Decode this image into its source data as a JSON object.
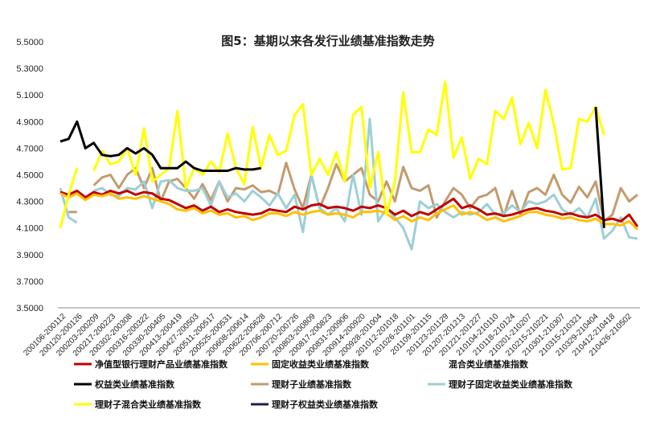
{
  "chart_data": {
    "type": "line",
    "title": "图5：基期以来各发行业绩基准指数走势",
    "xlabel": "",
    "ylabel": "",
    "ylim": [
      3.5,
      5.5
    ],
    "yticks": [
      "5.5000",
      "5.3000",
      "5.1000",
      "4.9000",
      "4.7000",
      "4.5000",
      "4.3000",
      "4.1000",
      "3.9000",
      "3.7000",
      "3.5000"
    ],
    "grid": false,
    "legend_position": "bottom",
    "x_tick_labels": [
      "200106-200112",
      "200120-200126",
      "200203-200209",
      "200217-200223",
      "200302-200308",
      "200316-200322",
      "200330-200405",
      "200413-200419",
      "200427-200503",
      "200511-200517",
      "200525-200531",
      "200608-200614",
      "200622-200628",
      "200706-200712",
      "200720-200726",
      "200803-200809",
      "200817-200823",
      "200831-200906",
      "200914-200920",
      "200928-201004",
      "201012-201018",
      "201026-201101",
      "201109-201115",
      "201123-201129",
      "201207-201213",
      "201221-201227",
      "210104-210110",
      "210118-210124",
      "210201-210207",
      "210215-210221",
      "210301-210307",
      "210315-210321",
      "210329-210404",
      "210412-210418",
      "210426-210502"
    ],
    "n_points": 70,
    "series": [
      {
        "name": "净值型银行理财产品业绩基准指数",
        "color": "#C00000",
        "width": 3,
        "values": [
          4.37,
          4.35,
          4.38,
          4.33,
          4.37,
          4.35,
          4.38,
          4.36,
          4.38,
          4.35,
          4.37,
          4.36,
          4.32,
          4.31,
          4.28,
          4.25,
          4.27,
          4.23,
          4.26,
          4.22,
          4.24,
          4.22,
          4.21,
          4.2,
          4.21,
          4.24,
          4.23,
          4.22,
          4.26,
          4.24,
          4.27,
          4.28,
          4.25,
          4.26,
          4.25,
          4.23,
          4.26,
          4.25,
          4.27,
          4.25,
          4.2,
          4.23,
          4.19,
          4.22,
          4.2,
          4.24,
          4.28,
          4.32,
          4.25,
          4.27,
          4.24,
          4.2,
          4.21,
          4.19,
          4.2,
          4.22,
          4.24,
          4.25,
          4.23,
          4.22,
          4.2,
          4.21,
          4.19,
          4.18,
          4.2,
          4.16,
          4.17,
          4.15,
          4.2,
          4.11
        ]
      },
      {
        "name": "固定收益类业绩基准指数",
        "color": "#FFC000",
        "width": 3,
        "values": [
          4.36,
          4.33,
          4.36,
          4.31,
          4.35,
          4.34,
          4.36,
          4.32,
          4.33,
          4.32,
          4.34,
          4.32,
          4.3,
          4.28,
          4.24,
          4.23,
          4.25,
          4.21,
          4.23,
          4.2,
          4.21,
          4.18,
          4.19,
          4.16,
          4.18,
          4.21,
          4.21,
          4.19,
          4.22,
          4.2,
          4.22,
          4.23,
          4.2,
          4.21,
          4.2,
          4.18,
          4.22,
          4.22,
          4.23,
          4.21,
          4.16,
          4.19,
          4.15,
          4.18,
          4.16,
          4.21,
          4.24,
          4.27,
          4.2,
          4.22,
          4.2,
          4.16,
          4.18,
          4.15,
          4.17,
          4.19,
          4.22,
          4.22,
          4.2,
          4.19,
          4.17,
          4.18,
          4.16,
          4.15,
          4.17,
          4.13,
          4.13,
          4.12,
          4.15,
          4.09
        ]
      },
      {
        "name": "混合类业绩基准指数",
        "color": "#BFBFBF",
        "width": 2,
        "values": []
      },
      {
        "name": "权益类业绩基准指数",
        "color": "#000000",
        "width": 3,
        "values": [
          4.75,
          4.77,
          4.9,
          4.7,
          4.74,
          4.65,
          4.64,
          4.65,
          4.7,
          4.66,
          4.7,
          4.65,
          4.55,
          4.55,
          4.55,
          4.6,
          4.55,
          4.53,
          4.53,
          4.53,
          4.53,
          4.55,
          4.54,
          4.54,
          4.55,
          null,
          null,
          null,
          null,
          null,
          null,
          null,
          null,
          null,
          null,
          null,
          null,
          null,
          null,
          null,
          null,
          null,
          null,
          null,
          null,
          null,
          null,
          null,
          null,
          null,
          null,
          null,
          null,
          null,
          null,
          null,
          null,
          null,
          null,
          null,
          null,
          null,
          null,
          null,
          5.01,
          4.1,
          null,
          null,
          null,
          null
        ]
      },
      {
        "name": "理财子业绩基准指数",
        "color": "#C39B6E",
        "width": 3,
        "values": [
          null,
          4.22,
          4.22,
          null,
          4.42,
          4.48,
          4.5,
          4.4,
          4.5,
          4.55,
          4.4,
          4.55,
          4.3,
          4.45,
          4.47,
          4.4,
          4.32,
          4.43,
          4.31,
          4.45,
          4.3,
          4.4,
          4.39,
          4.42,
          4.37,
          4.38,
          4.35,
          4.59,
          4.39,
          4.25,
          4.5,
          4.25,
          4.4,
          4.58,
          4.45,
          4.5,
          4.55,
          4.35,
          4.3,
          4.45,
          4.3,
          4.56,
          4.4,
          4.38,
          4.42,
          4.18,
          4.3,
          4.4,
          4.35,
          4.25,
          4.33,
          4.35,
          4.4,
          4.19,
          4.38,
          4.2,
          4.37,
          4.4,
          4.35,
          4.5,
          4.35,
          4.29,
          4.41,
          4.33,
          4.45,
          4.15,
          4.2,
          4.4,
          4.3,
          4.35
        ]
      },
      {
        "name": "理财子固定收益类业绩基准指数",
        "color": "#9DCFD5",
        "width": 3,
        "values": [
          4.4,
          4.18,
          4.14,
          null,
          4.38,
          4.4,
          4.35,
          4.34,
          4.4,
          4.39,
          4.45,
          4.25,
          4.45,
          4.46,
          4.4,
          4.38,
          4.38,
          4.4,
          4.27,
          4.45,
          4.33,
          4.36,
          4.3,
          4.38,
          4.33,
          4.27,
          4.36,
          4.25,
          4.35,
          4.07,
          4.5,
          4.25,
          4.2,
          4.25,
          4.15,
          4.5,
          4.2,
          4.92,
          4.15,
          4.25,
          4.18,
          4.1,
          3.94,
          4.3,
          4.25,
          4.28,
          4.22,
          4.18,
          4.22,
          4.2,
          4.22,
          4.28,
          4.2,
          4.21,
          4.27,
          4.22,
          4.3,
          4.28,
          4.3,
          4.35,
          4.24,
          4.2,
          4.25,
          4.18,
          4.32,
          4.02,
          4.08,
          4.18,
          4.03,
          4.02
        ]
      },
      {
        "name": "理财子混合类业绩基准指数",
        "color": "#FFFF00",
        "width": 3,
        "values": [
          4.1,
          4.35,
          4.55,
          null,
          4.53,
          4.68,
          4.58,
          4.6,
          4.7,
          4.5,
          4.85,
          4.45,
          4.5,
          4.55,
          4.98,
          4.4,
          4.55,
          4.5,
          4.6,
          4.52,
          4.81,
          4.55,
          4.43,
          4.86,
          4.55,
          4.8,
          4.65,
          4.68,
          4.95,
          5.03,
          4.5,
          4.62,
          4.5,
          4.67,
          4.45,
          4.95,
          5.01,
          4.4,
          4.67,
          4.2,
          4.45,
          5.12,
          4.67,
          4.67,
          4.84,
          4.8,
          5.2,
          4.63,
          4.78,
          4.47,
          4.62,
          4.58,
          4.98,
          4.92,
          5.08,
          4.73,
          4.89,
          4.7,
          5.14,
          4.88,
          4.54,
          4.55,
          4.92,
          4.9,
          5.01,
          4.8,
          null,
          null,
          null,
          null
        ]
      },
      {
        "name": "理财子权益类业绩基准指数",
        "color": "#1F1F4A",
        "width": 3,
        "values": []
      }
    ]
  }
}
